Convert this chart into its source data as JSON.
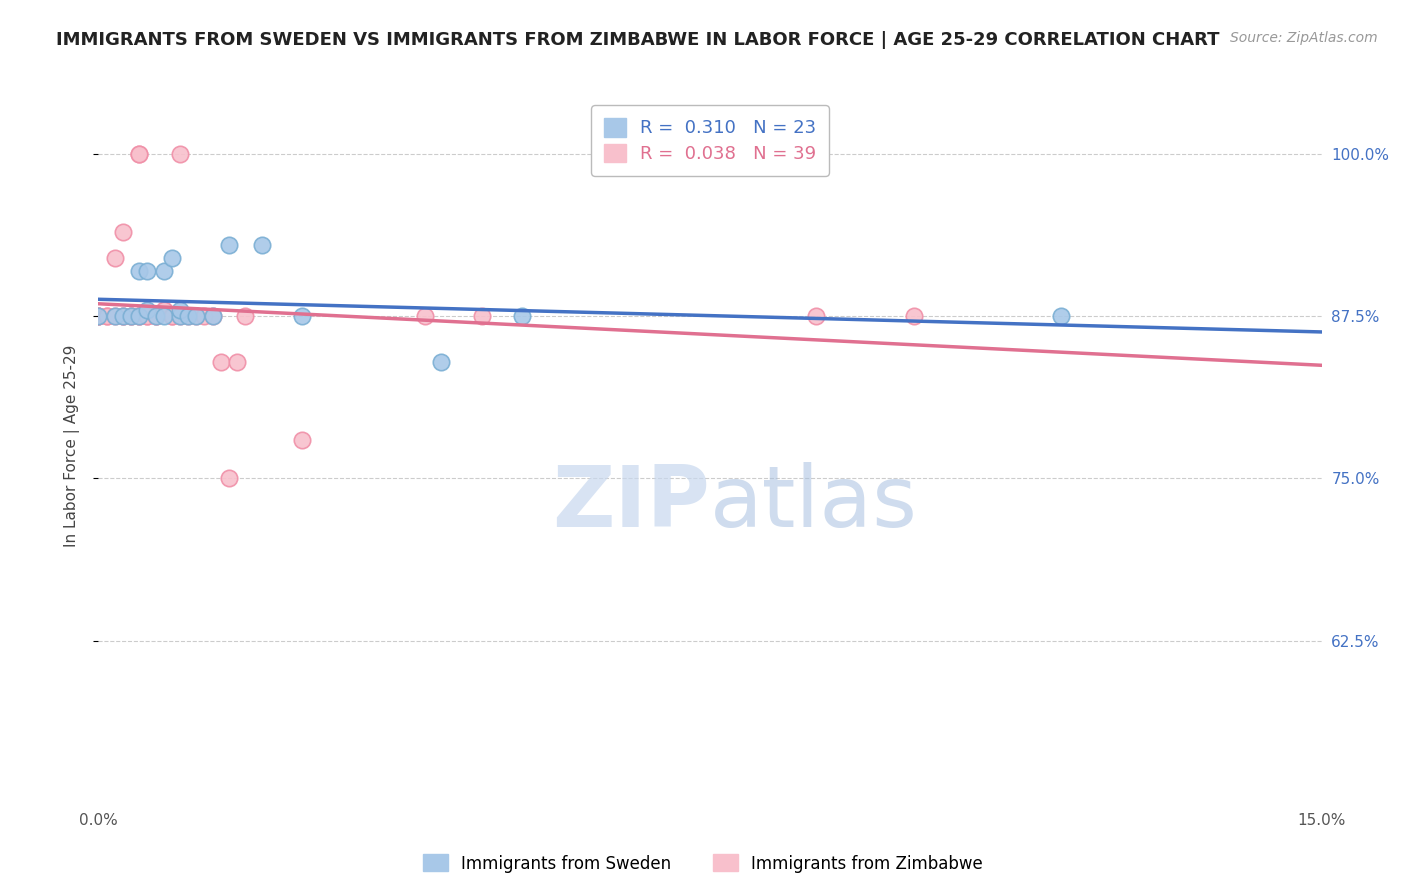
{
  "title": "IMMIGRANTS FROM SWEDEN VS IMMIGRANTS FROM ZIMBABWE IN LABOR FORCE | AGE 25-29 CORRELATION CHART",
  "source": "Source: ZipAtlas.com",
  "ylabel": "In Labor Force | Age 25-29",
  "xlim": [
    0.0,
    0.15
  ],
  "ylim": [
    0.5,
    1.05
  ],
  "yticks": [
    0.625,
    0.75,
    0.875,
    1.0
  ],
  "ytick_labels": [
    "62.5%",
    "75.0%",
    "87.5%",
    "100.0%"
  ],
  "xticks": [
    0.0,
    0.025,
    0.05,
    0.075,
    0.1,
    0.125,
    0.15
  ],
  "xtick_labels": [
    "0.0%",
    "",
    "",
    "",
    "",
    "",
    "15.0%"
  ],
  "sweden_color": "#a8c8e8",
  "sweden_edge_color": "#7bafd4",
  "zimbabwe_color": "#f8c0cc",
  "zimbabwe_edge_color": "#f090a8",
  "sweden_line_color": "#4472c4",
  "zimbabwe_line_color": "#e07090",
  "sweden_R": 0.31,
  "sweden_N": 23,
  "zimbabwe_R": 0.038,
  "zimbabwe_N": 39,
  "sweden_x": [
    0.0,
    0.002,
    0.003,
    0.004,
    0.005,
    0.005,
    0.006,
    0.006,
    0.007,
    0.008,
    0.008,
    0.009,
    0.01,
    0.01,
    0.011,
    0.012,
    0.014,
    0.016,
    0.02,
    0.025,
    0.042,
    0.052,
    0.118
  ],
  "sweden_y": [
    0.875,
    0.875,
    0.875,
    0.875,
    0.91,
    0.875,
    0.91,
    0.88,
    0.875,
    0.91,
    0.875,
    0.92,
    0.875,
    0.88,
    0.875,
    0.875,
    0.875,
    0.93,
    0.93,
    0.875,
    0.84,
    0.875,
    0.875
  ],
  "zimbabwe_x": [
    0.0,
    0.0,
    0.0,
    0.001,
    0.001,
    0.002,
    0.002,
    0.003,
    0.003,
    0.003,
    0.004,
    0.004,
    0.005,
    0.005,
    0.005,
    0.005,
    0.006,
    0.006,
    0.007,
    0.007,
    0.008,
    0.008,
    0.009,
    0.009,
    0.01,
    0.01,
    0.011,
    0.012,
    0.013,
    0.014,
    0.015,
    0.016,
    0.017,
    0.018,
    0.025,
    0.04,
    0.047,
    0.088,
    0.1
  ],
  "zimbabwe_y": [
    0.875,
    0.875,
    0.875,
    0.875,
    0.875,
    0.92,
    0.875,
    0.94,
    0.875,
    0.875,
    0.875,
    0.875,
    1.0,
    1.0,
    0.875,
    0.875,
    0.875,
    0.875,
    0.875,
    0.875,
    0.88,
    0.88,
    0.875,
    0.875,
    1.0,
    0.875,
    0.875,
    0.875,
    0.875,
    0.875,
    0.84,
    0.75,
    0.84,
    0.875,
    0.78,
    0.875,
    0.875,
    0.875,
    0.875
  ],
  "watermark_zip_color": "#c8d8ee",
  "watermark_atlas_color": "#a8c0e0",
  "background_color": "#ffffff",
  "grid_color": "#cccccc",
  "title_fontsize": 13,
  "source_fontsize": 10,
  "tick_fontsize": 11,
  "legend_fontsize": 13
}
